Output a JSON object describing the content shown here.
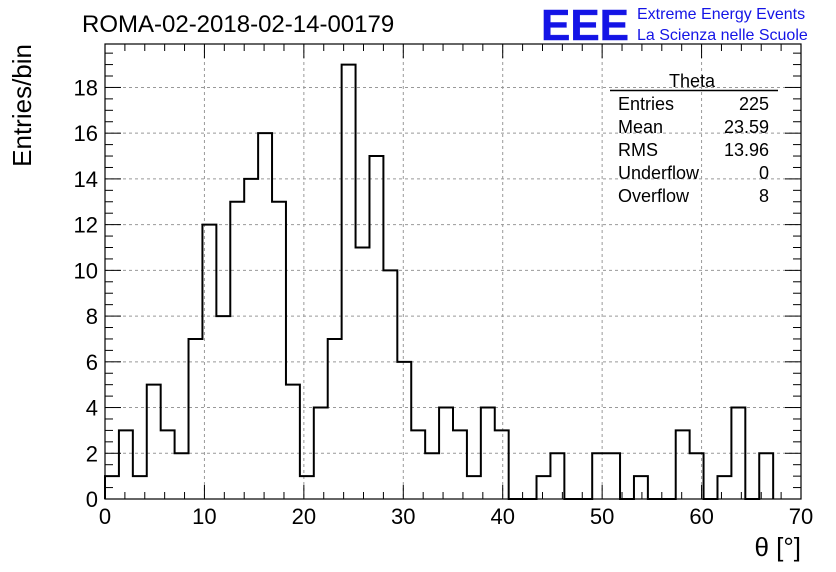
{
  "header": {
    "run_title": "ROMA-02-2018-02-14-00179",
    "logo_text": "EEE",
    "logo_line1": "Extreme Energy Events",
    "logo_line2": "La Scienza nelle Scuole",
    "logo_color": "#1414e6"
  },
  "stats": {
    "title": "Theta",
    "rows": [
      {
        "label": "Entries",
        "value": "225"
      },
      {
        "label": "Mean",
        "value": "23.59"
      },
      {
        "label": "RMS",
        "value": "13.96"
      },
      {
        "label": "Underflow",
        "value": "0"
      },
      {
        "label": "Overflow",
        "value": "8"
      }
    ]
  },
  "chart_data": {
    "type": "bar",
    "histogram": true,
    "xlabel": "θ [°]",
    "ylabel": "Entries/bin",
    "xlim": [
      0,
      70
    ],
    "ylim": [
      0,
      19.9
    ],
    "x_ticks": [
      0,
      10,
      20,
      30,
      40,
      50,
      60,
      70
    ],
    "y_ticks": [
      0,
      2,
      4,
      6,
      8,
      10,
      12,
      14,
      16,
      18
    ],
    "grid": true,
    "bin_width": 1.4,
    "bin_edges_start": 0,
    "values": [
      1,
      3,
      1,
      5,
      3,
      2,
      7,
      12,
      8,
      13,
      14,
      16,
      13,
      5,
      1,
      4,
      7,
      19,
      11,
      15,
      10,
      6,
      3,
      2,
      4,
      3,
      1,
      4,
      3,
      0,
      0,
      1,
      2,
      0,
      0,
      2,
      2,
      0,
      1,
      0,
      0,
      3,
      2,
      0,
      1,
      4,
      0,
      2
    ]
  }
}
